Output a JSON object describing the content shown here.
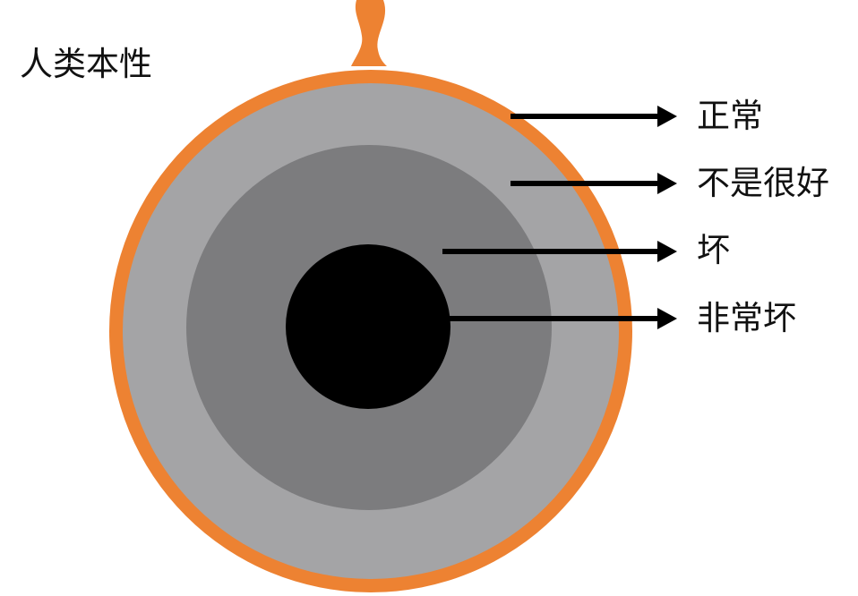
{
  "title": "人类本性",
  "colors": {
    "outer_rim": "#ED8232",
    "layer_normal": "#A4A4A6",
    "layer_not_good": "#7C7C7E",
    "core": "#000000",
    "arrow": "#000000",
    "text": "#111111"
  },
  "layers": [
    {
      "label": "正常",
      "color_key": "outer_rim"
    },
    {
      "label": "不是很好",
      "color_key": "layer_normal"
    },
    {
      "label": "坏",
      "color_key": "layer_not_good"
    },
    {
      "label": "非常坏",
      "color_key": "core"
    }
  ]
}
